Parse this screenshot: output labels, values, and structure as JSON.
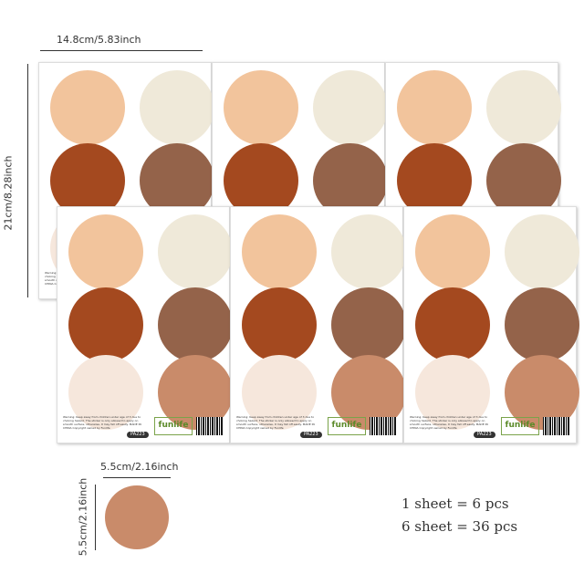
{
  "sheet": {
    "circle_colors": [
      "#f2c49c",
      "#efe9d9",
      "#a4491f",
      "#94634a",
      "#f6e7dc",
      "#c98b6a"
    ],
    "warning_text": "Warning: Keep away from children under age of 3 due to choking hazard. The sticker is only allowed to apply on smooth surface, otherwise, it may fall off easily. MADE IN CHINA Copyright owned by Funlife",
    "logo": "funlife",
    "product_code": "PA223"
  },
  "dimensions": {
    "sheet_width": "14.8cm/5.83inch",
    "sheet_height": "21cm/8.28inch",
    "circle_width": "5.5cm/2.16inch",
    "circle_height": "5.5cm/2.16inch"
  },
  "single_circle_color": "#c98b6a",
  "counts": {
    "line1": "1 sheet = 6 pcs",
    "line2": "6 sheet = 36 pcs"
  }
}
